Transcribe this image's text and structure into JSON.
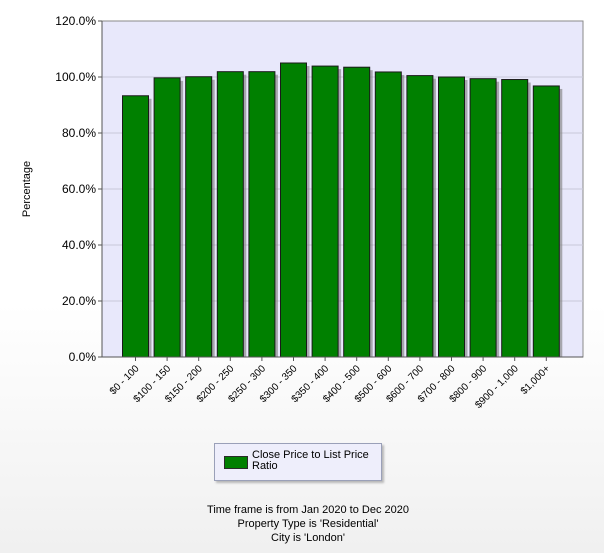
{
  "chart_data": {
    "type": "bar",
    "title": "",
    "xlabel": "",
    "ylabel": "Percentage",
    "ylim": [
      0,
      120
    ],
    "yticks": [
      "0.0%",
      "20.0%",
      "40.0%",
      "60.0%",
      "80.0%",
      "100.0%",
      "120.0%"
    ],
    "categories": [
      "$0 - 100",
      "$100 - 150",
      "$150 - 200",
      "$200 - 250",
      "$250 - 300",
      "$300 - 350",
      "$350 - 400",
      "$400 - 500",
      "$500 - 600",
      "$600 - 700",
      "$700 - 800",
      "$800 - 900",
      "$900 - 1,000",
      "$1,000+"
    ],
    "series": [
      {
        "name": "Close Price to List Price Ratio",
        "values": [
          93.3,
          99.7,
          100.1,
          101.9,
          101.9,
          105.0,
          103.9,
          103.5,
          101.8,
          100.5,
          100.0,
          99.4,
          99.1,
          96.8
        ]
      }
    ],
    "bar_color": "#008000",
    "plot_background": "#e8e8fb",
    "grid": true,
    "legend": "bottom-center"
  },
  "footer": {
    "line1": "Time frame is from Jan 2020 to Dec 2020",
    "line2": "Property Type is 'Residential'",
    "line3": "City is 'London'"
  }
}
